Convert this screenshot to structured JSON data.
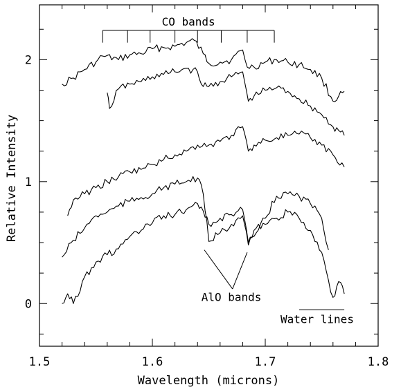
{
  "chart_data": {
    "type": "line",
    "title": "",
    "xlabel": "Wavelength (microns)",
    "ylabel": "Relative Intensity",
    "xlim": [
      1.5,
      1.8
    ],
    "ylim": [
      -0.35,
      2.45
    ],
    "grid": false,
    "legend": "none",
    "x_ticks": [
      1.5,
      1.6,
      1.7,
      1.8
    ],
    "x_tick_labels": [
      "1.5",
      "1.6",
      "1.7",
      "1.8"
    ],
    "y_ticks": [
      0,
      1,
      2
    ],
    "y_tick_labels": [
      "0",
      "1",
      "2"
    ],
    "x_minor_step": 0.02,
    "y_minor_step": 0.25,
    "series": [
      {
        "x": [
          1.52,
          1.53,
          1.54,
          1.55,
          1.556,
          1.57,
          1.58,
          1.59,
          1.6,
          1.61,
          1.62,
          1.63,
          1.637,
          1.645,
          1.65,
          1.66,
          1.67,
          1.68,
          1.684,
          1.69,
          1.7,
          1.71,
          1.72,
          1.73,
          1.74,
          1.75,
          1.76,
          1.765,
          1.77
        ],
        "y": [
          1.8,
          1.85,
          1.92,
          1.98,
          2.03,
          2.0,
          2.04,
          2.05,
          2.09,
          2.1,
          2.11,
          2.14,
          2.16,
          2.05,
          1.97,
          1.98,
          2.0,
          2.08,
          1.94,
          1.94,
          1.98,
          2.0,
          1.98,
          1.96,
          1.92,
          1.85,
          1.66,
          1.7,
          1.74
        ]
      },
      {
        "x": [
          1.56,
          1.562,
          1.57,
          1.58,
          1.59,
          1.6,
          1.61,
          1.62,
          1.63,
          1.64,
          1.645,
          1.65,
          1.66,
          1.67,
          1.68,
          1.685,
          1.69,
          1.7,
          1.71,
          1.72,
          1.73,
          1.74,
          1.75,
          1.76,
          1.765,
          1.77
        ],
        "y": [
          1.73,
          1.6,
          1.76,
          1.8,
          1.82,
          1.86,
          1.88,
          1.9,
          1.93,
          1.9,
          1.78,
          1.78,
          1.82,
          1.86,
          1.9,
          1.66,
          1.7,
          1.75,
          1.77,
          1.74,
          1.68,
          1.62,
          1.55,
          1.45,
          1.42,
          1.38
        ]
      },
      {
        "x": [
          1.525,
          1.53,
          1.54,
          1.55,
          1.56,
          1.57,
          1.58,
          1.59,
          1.6,
          1.61,
          1.62,
          1.63,
          1.64,
          1.65,
          1.66,
          1.67,
          1.68,
          1.685,
          1.69,
          1.7,
          1.71,
          1.72,
          1.73,
          1.74,
          1.75,
          1.76,
          1.77
        ],
        "y": [
          0.72,
          0.85,
          0.9,
          0.95,
          1.0,
          1.04,
          1.08,
          1.1,
          1.14,
          1.18,
          1.22,
          1.25,
          1.3,
          1.3,
          1.33,
          1.38,
          1.45,
          1.25,
          1.3,
          1.34,
          1.36,
          1.38,
          1.39,
          1.36,
          1.3,
          1.22,
          1.12
        ]
      },
      {
        "x": [
          1.52,
          1.53,
          1.54,
          1.55,
          1.56,
          1.57,
          1.58,
          1.59,
          1.6,
          1.61,
          1.62,
          1.63,
          1.64,
          1.645,
          1.65,
          1.66,
          1.67,
          1.68,
          1.685,
          1.69,
          1.7,
          1.71,
          1.72,
          1.73,
          1.74,
          1.75,
          1.756
        ],
        "y": [
          0.38,
          0.52,
          0.62,
          0.72,
          0.75,
          0.8,
          0.84,
          0.87,
          0.9,
          0.95,
          0.98,
          1.0,
          1.03,
          0.9,
          0.51,
          0.58,
          0.65,
          0.72,
          0.48,
          0.55,
          0.7,
          0.88,
          0.9,
          0.88,
          0.82,
          0.7,
          0.44
        ]
      },
      {
        "x": [
          1.52,
          1.525,
          1.53,
          1.54,
          1.55,
          1.56,
          1.57,
          1.58,
          1.59,
          1.6,
          1.61,
          1.62,
          1.63,
          1.64,
          1.645,
          1.65,
          1.66,
          1.67,
          1.68,
          1.685,
          1.69,
          1.7,
          1.71,
          1.72,
          1.73,
          1.74,
          1.75,
          1.76,
          1.765,
          1.77
        ],
        "y": [
          0.0,
          0.08,
          0.0,
          0.22,
          0.34,
          0.4,
          0.45,
          0.55,
          0.6,
          0.66,
          0.72,
          0.73,
          0.77,
          0.82,
          0.76,
          0.65,
          0.7,
          0.73,
          0.77,
          0.5,
          0.6,
          0.65,
          0.7,
          0.75,
          0.7,
          0.6,
          0.42,
          0.05,
          0.18,
          0.08
        ]
      }
    ],
    "annotations": {
      "co_bands": {
        "label": "CO bands",
        "bracket_x": [
          1.556,
          1.708
        ],
        "tick_x": [
          1.556,
          1.578,
          1.598,
          1.62,
          1.64,
          1.661,
          1.684,
          1.708
        ],
        "bracket_y": 2.24,
        "tick_y": 2.14
      },
      "alo_bands": {
        "label": "AlO bands",
        "lines": [
          [
            1.646,
            0.44,
            1.671,
            0.12
          ],
          [
            1.684,
            0.42,
            1.671,
            0.12
          ]
        ],
        "label_x": 1.67,
        "label_y": 0.02
      },
      "water_lines": {
        "label": "Water lines",
        "line_x": [
          1.73,
          1.77
        ],
        "line_y": -0.05,
        "label_x": 1.746,
        "label_y": -0.16
      }
    }
  }
}
